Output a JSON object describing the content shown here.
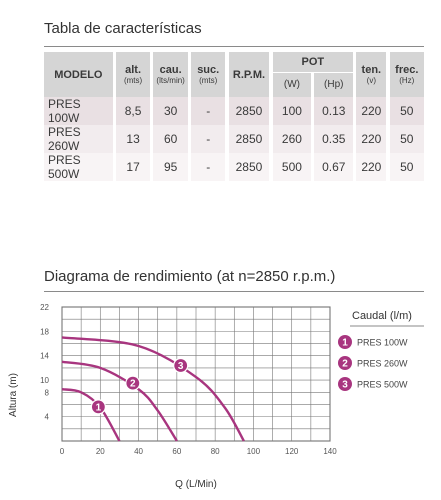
{
  "spec_section": {
    "title": "Tabla de características",
    "headers": {
      "model": "MODELO",
      "alt": "alt.",
      "alt_unit": "(mts)",
      "cau": "cau.",
      "cau_unit": "(lts/min)",
      "suc": "suc.",
      "suc_unit": "(mts)",
      "rpm": "R.P.M.",
      "pot": "POT",
      "pot_w": "(W)",
      "pot_hp": "(Hp)",
      "ten": "ten.",
      "ten_unit": "(v)",
      "frec": "frec.",
      "frec_unit": "(Hz)"
    },
    "rows": [
      {
        "model": "PRES 100W",
        "alt": "8,5",
        "cau": "30",
        "suc": "-",
        "rpm": "2850",
        "w": "100",
        "hp": "0.13",
        "ten": "220",
        "hz": "50"
      },
      {
        "model": "PRES 260W",
        "alt": "13",
        "cau": "60",
        "suc": "-",
        "rpm": "2850",
        "w": "260",
        "hp": "0.35",
        "ten": "220",
        "hz": "50"
      },
      {
        "model": "PRES 500W",
        "alt": "17",
        "cau": "95",
        "suc": "-",
        "rpm": "2850",
        "w": "500",
        "hp": "0.67",
        "ten": "220",
        "hz": "50"
      }
    ]
  },
  "chart_section": {
    "title": "Diagrama de rendimiento (at n=2850 r.p.m.)"
  },
  "chart_data": {
    "type": "line",
    "title": "Diagrama de rendimiento (at n=2850 r.p.m.)",
    "xlabel": "Q (L/Min)",
    "ylabel": "Altura (m)",
    "xlim": [
      0,
      140
    ],
    "ylim": [
      0,
      22
    ],
    "xticks": [
      0,
      20,
      40,
      60,
      80,
      100,
      120,
      140
    ],
    "yticks": [
      4,
      8,
      10,
      14,
      18,
      22
    ],
    "grid": true,
    "legend_title": "Caudal (l/m)",
    "legend_position": "right",
    "series": [
      {
        "name": "PRES 100W",
        "marker": "1",
        "color": "#a8357f",
        "x": [
          0,
          10,
          20,
          30
        ],
        "y": [
          8.5,
          8.0,
          5.5,
          0
        ]
      },
      {
        "name": "PRES 260W",
        "marker": "2",
        "color": "#a8357f",
        "x": [
          0,
          20,
          40,
          50,
          60
        ],
        "y": [
          13,
          12.0,
          8.5,
          5.0,
          0
        ]
      },
      {
        "name": "PRES 500W",
        "marker": "3",
        "color": "#a8357f",
        "x": [
          0,
          40,
          70,
          85,
          95
        ],
        "y": [
          17,
          15.6,
          10.5,
          5.5,
          0
        ]
      }
    ],
    "markers_at": [
      {
        "label": "1",
        "x": 19,
        "y": 5.6
      },
      {
        "label": "2",
        "x": 37,
        "y": 9.5
      },
      {
        "label": "3",
        "x": 62,
        "y": 12.4
      }
    ]
  }
}
